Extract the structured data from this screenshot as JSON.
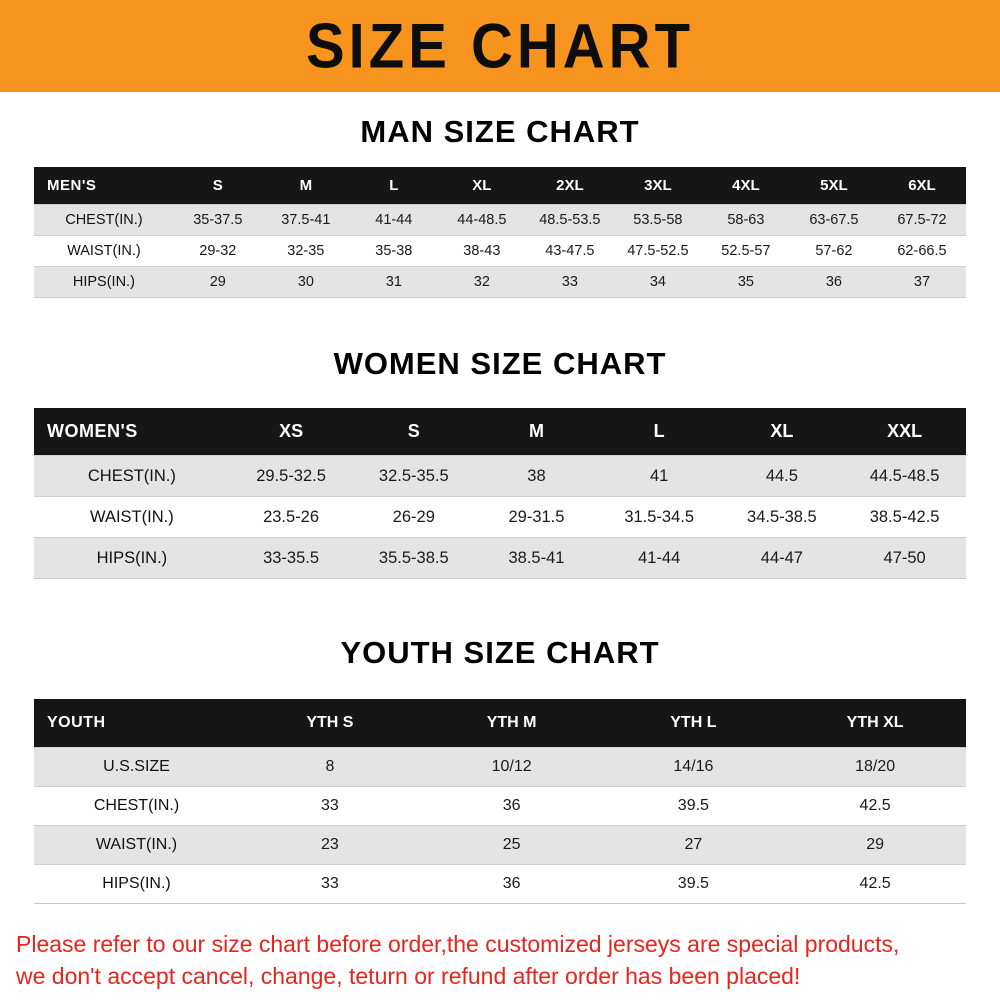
{
  "banner": {
    "title": "SIZE CHART"
  },
  "colors": {
    "banner_bg": "#f7941e",
    "header_row_bg": "#161616",
    "row_alt_bg": "#e4e4e4",
    "disclaimer_red": "#e8251d"
  },
  "sections": [
    {
      "heading": "MAN SIZE CHART",
      "table": {
        "header_label": "MEN'S",
        "columns": [
          "S",
          "M",
          "L",
          "XL",
          "2XL",
          "3XL",
          "4XL",
          "5XL",
          "6XL"
        ],
        "rows": [
          {
            "label": "CHEST(IN.)",
            "values": [
              "35-37.5",
              "37.5-41",
              "41-44",
              "44-48.5",
              "48.5-53.5",
              "53.5-58",
              "58-63",
              "63-67.5",
              "67.5-72"
            ]
          },
          {
            "label": "WAIST(IN.)",
            "values": [
              "29-32",
              "32-35",
              "35-38",
              "38-43",
              "43-47.5",
              "47.5-52.5",
              "52.5-57",
              "57-62",
              "62-66.5"
            ]
          },
          {
            "label": "HIPS(IN.)",
            "values": [
              "29",
              "30",
              "31",
              "32",
              "33",
              "34",
              "35",
              "36",
              "37"
            ]
          }
        ]
      }
    },
    {
      "heading": "WOMEN SIZE CHART",
      "table": {
        "header_label": "WOMEN'S",
        "columns": [
          "XS",
          "S",
          "M",
          "L",
          "XL",
          "XXL"
        ],
        "rows": [
          {
            "label": "CHEST(IN.)",
            "values": [
              "29.5-32.5",
              "32.5-35.5",
              "38",
              "41",
              "44.5",
              "44.5-48.5"
            ]
          },
          {
            "label": "WAIST(IN.)",
            "values": [
              "23.5-26",
              "26-29",
              "29-31.5",
              "31.5-34.5",
              "34.5-38.5",
              "38.5-42.5"
            ]
          },
          {
            "label": "HIPS(IN.)",
            "values": [
              "33-35.5",
              "35.5-38.5",
              "38.5-41",
              "41-44",
              "44-47",
              "47-50"
            ]
          }
        ]
      }
    },
    {
      "heading": "YOUTH SIZE CHART",
      "table": {
        "header_label": "YOUTH",
        "columns": [
          "YTH S",
          "YTH M",
          "YTH L",
          "YTH XL"
        ],
        "rows": [
          {
            "label": "U.S.SIZE",
            "values": [
              "8",
              "10/12",
              "14/16",
              "18/20"
            ]
          },
          {
            "label": "CHEST(IN.)",
            "values": [
              "33",
              "36",
              "39.5",
              "42.5"
            ]
          },
          {
            "label": "WAIST(IN.)",
            "values": [
              "23",
              "25",
              "27",
              "29"
            ]
          },
          {
            "label": "HIPS(IN.)",
            "values": [
              "33",
              "36",
              "39.5",
              "42.5"
            ]
          }
        ]
      }
    }
  ],
  "disclaimer": {
    "lines": [
      "Please refer to our size chart before order,the customized jerseys are special products,",
      "we don't accept cancel, change, teturn or refund after order has been placed!"
    ]
  }
}
